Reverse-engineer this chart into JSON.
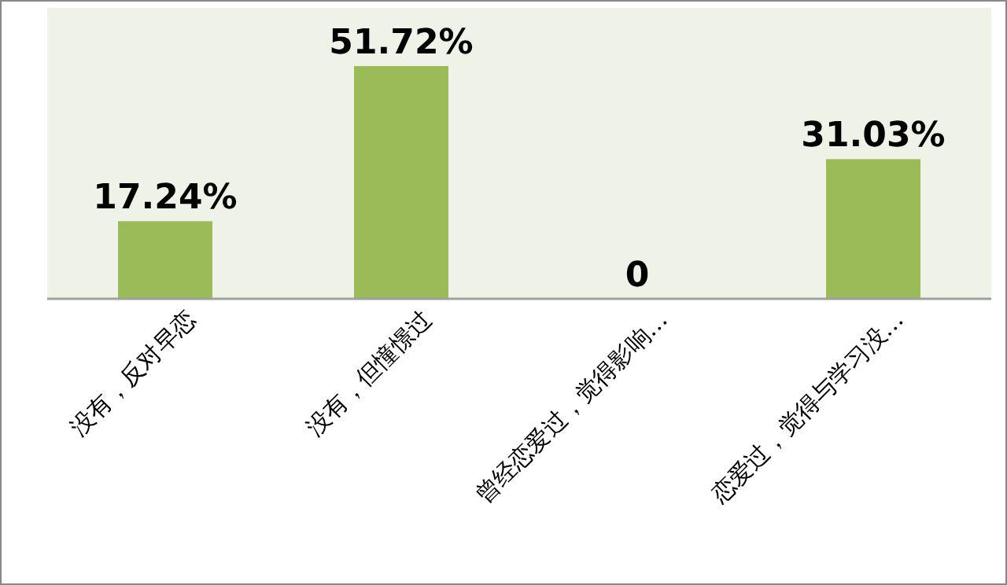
{
  "chart_data": {
    "type": "bar",
    "categories": [
      "没有，反对早恋",
      "没有，但憧憬过",
      "曾经恋爱过，觉得影响…",
      "恋爱过，觉得与学习没…"
    ],
    "values": [
      17.24,
      51.72,
      0,
      31.03
    ],
    "value_labels": [
      "17.24%",
      "51.72%",
      "0",
      "31.03%"
    ],
    "color": "#9bbb59"
  }
}
